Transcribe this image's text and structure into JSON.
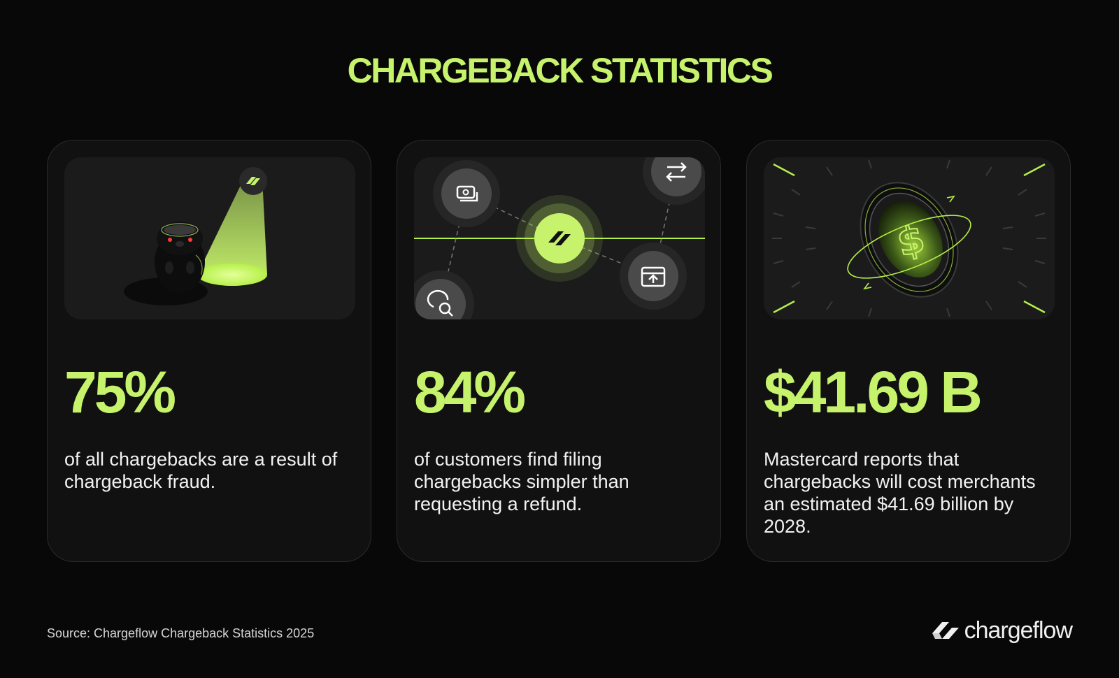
{
  "title": "CHARGEBACK STATISTICS",
  "cards": [
    {
      "stat": "75%",
      "description": "of all chargebacks are a result of chargeback fraud.",
      "illustration": "spotlight-beaver"
    },
    {
      "stat": "84%",
      "description": "of customers find filing chargebacks simpler than requesting a refund.",
      "illustration": "network-nodes",
      "icons": [
        "cash-icon",
        "transfer-icon",
        "brand-logo-icon",
        "package-upload-icon",
        "chat-search-icon"
      ]
    },
    {
      "stat": "$41.69 B",
      "description": "Mastercard reports that chargebacks will cost merchants an estimated $41.69 billion by 2028.",
      "illustration": "spinning-dollar-coin"
    }
  ],
  "footer": {
    "source": "Source: Chargeflow Chargeback Statistics 2025",
    "brand": "chargeflow"
  },
  "colors": {
    "accent": "#c6f36b",
    "background": "#080808",
    "card": "#111111",
    "panel": "#1b1b1b"
  }
}
